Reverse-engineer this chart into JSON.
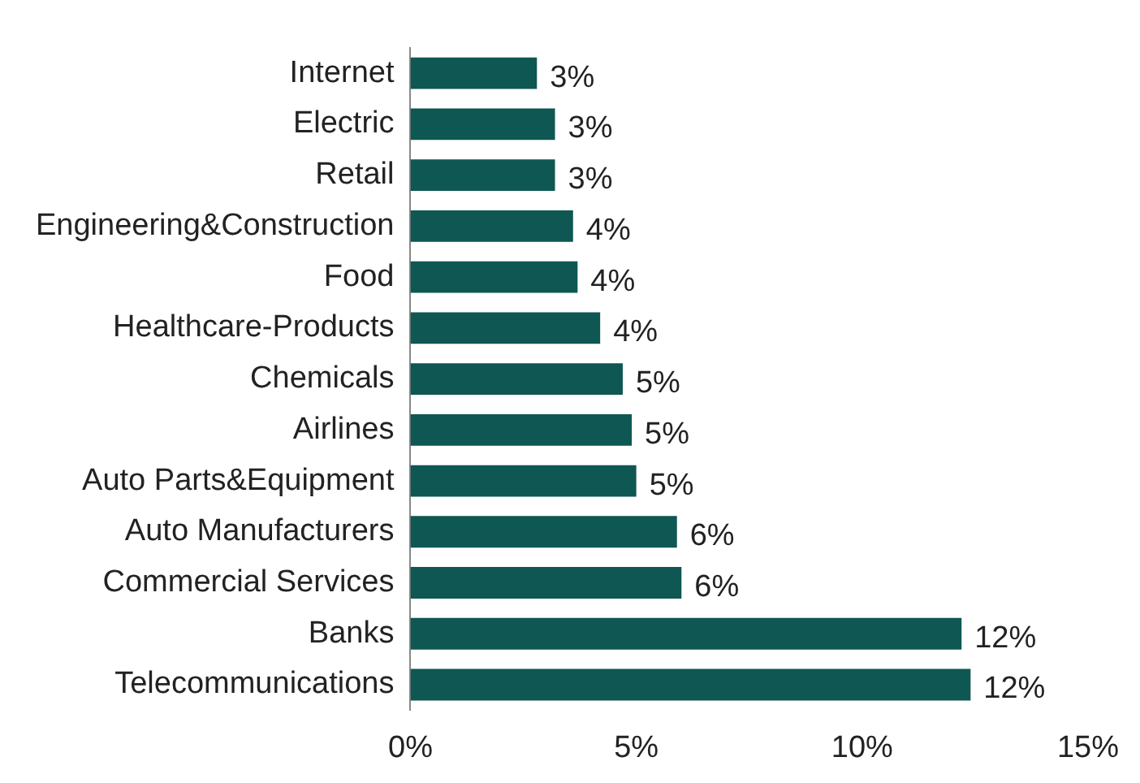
{
  "chart_data": {
    "type": "bar",
    "orientation": "horizontal",
    "categories": [
      "Internet",
      "Electric",
      "Retail",
      "Engineering&Construction",
      "Food",
      "Healthcare-Products",
      "Chemicals",
      "Airlines",
      "Auto Parts&Equipment",
      "Auto Manufacturers",
      "Commercial Services",
      "Banks",
      "Telecommunications"
    ],
    "values": [
      2.8,
      3.2,
      3.2,
      3.6,
      3.7,
      4.2,
      4.7,
      4.9,
      5.0,
      5.9,
      6.0,
      12.2,
      12.4
    ],
    "value_labels": [
      "3%",
      "3%",
      "3%",
      "4%",
      "4%",
      "4%",
      "5%",
      "5%",
      "5%",
      "6%",
      "6%",
      "12%",
      "12%"
    ],
    "color": "#0e5752",
    "xlim": [
      0,
      15
    ],
    "xticks": [
      {
        "value": 0,
        "label": "0%"
      },
      {
        "value": 5,
        "label": "5%"
      },
      {
        "value": 10,
        "label": "10%"
      },
      {
        "value": 15,
        "label": "15%"
      }
    ],
    "grid": false,
    "legend": false
  }
}
